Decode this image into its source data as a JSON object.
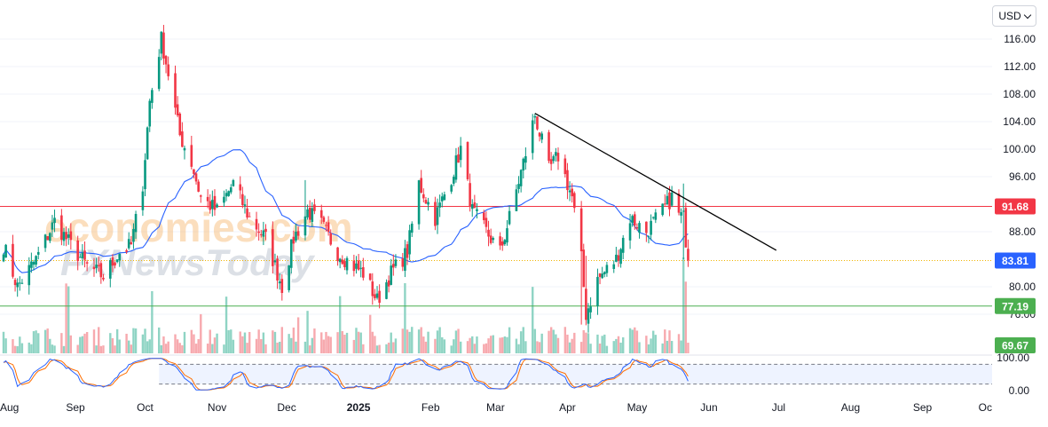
{
  "currency": "USD",
  "watermark": {
    "line1": "economies.com",
    "line2": "FXNewsToday"
  },
  "colors": {
    "up": "#089981",
    "down": "#f23645",
    "upVol": "#8fd4c4",
    "downVol": "#f7a9ae",
    "resistance": "#f23645",
    "support": "#4caf50",
    "ma": "#2962ff",
    "current": "#2962ff",
    "stochK": "#2962ff",
    "stochD": "#ff6d00",
    "trendline": "#000000"
  },
  "chart_data": {
    "type": "candlestick",
    "price_axis": {
      "ticks": [
        116,
        112,
        108,
        104,
        100,
        96,
        88,
        80,
        76
      ],
      "range": [
        68.5,
        118.5
      ]
    },
    "stochastic_axis": {
      "ticks": [
        "100.00",
        "0.00"
      ],
      "range": [
        0,
        100
      ]
    },
    "time_axis": {
      "labels": [
        "Aug",
        "Sep",
        "Oct",
        "Nov",
        "Dec",
        "2025",
        "Feb",
        "Mar",
        "Apr",
        "May",
        "Jun",
        "Jul",
        "Aug",
        "Sep",
        "Oc"
      ]
    },
    "price_labels": [
      {
        "id": "resistance",
        "text": "91.68",
        "value": 91.68
      },
      {
        "id": "current",
        "text": "83.81",
        "value": 83.81
      },
      {
        "id": "support",
        "text": "77.19",
        "value": 77.19
      },
      {
        "id": "volume",
        "text": "69.67",
        "value": 69.67
      }
    ],
    "levels": [
      {
        "name": "resistance",
        "value": 91.68
      },
      {
        "name": "support",
        "value": 77.19
      },
      {
        "name": "current",
        "value": 83.81
      }
    ],
    "trendline": [
      {
        "date": "2025-03-18",
        "value": 105.2
      },
      {
        "date": "2025-06-30",
        "value": 85.3
      }
    ],
    "price_anchors": [
      [
        "2024-08-01",
        86
      ],
      [
        "2024-08-07",
        80
      ],
      [
        "2024-08-15",
        84
      ],
      [
        "2024-08-23",
        89.5
      ],
      [
        "2024-08-30",
        86
      ],
      [
        "2024-09-06",
        83
      ],
      [
        "2024-09-13",
        81.5
      ],
      [
        "2024-09-20",
        85
      ],
      [
        "2024-09-25",
        86
      ],
      [
        "2024-09-30",
        95
      ],
      [
        "2024-10-03",
        107
      ],
      [
        "2024-10-08",
        116
      ],
      [
        "2024-10-11",
        111
      ],
      [
        "2024-10-16",
        102
      ],
      [
        "2024-10-21",
        98
      ],
      [
        "2024-10-25",
        93
      ],
      [
        "2024-11-01",
        91
      ],
      [
        "2024-11-08",
        95
      ],
      [
        "2024-11-15",
        90
      ],
      [
        "2024-11-22",
        87
      ],
      [
        "2024-11-29",
        80
      ],
      [
        "2024-12-04",
        87
      ],
      [
        "2024-12-10",
        91
      ],
      [
        "2024-12-16",
        89
      ],
      [
        "2024-12-23",
        85
      ],
      [
        "2024-12-30",
        83
      ],
      [
        "2025-01-03",
        82
      ],
      [
        "2025-01-09",
        78
      ],
      [
        "2025-01-15",
        82
      ],
      [
        "2025-01-22",
        85
      ],
      [
        "2025-01-27",
        95
      ],
      [
        "2025-02-03",
        90
      ],
      [
        "2025-02-10",
        96
      ],
      [
        "2025-02-14",
        100
      ],
      [
        "2025-02-19",
        91
      ],
      [
        "2025-02-25",
        88
      ],
      [
        "2025-03-03",
        85
      ],
      [
        "2025-03-07",
        90
      ],
      [
        "2025-03-13",
        98
      ],
      [
        "2025-03-18",
        105
      ],
      [
        "2025-03-24",
        97
      ],
      [
        "2025-03-28",
        99
      ],
      [
        "2025-04-03",
        93
      ],
      [
        "2025-04-07",
        84
      ],
      [
        "2025-04-09",
        76
      ],
      [
        "2025-04-14",
        81
      ],
      [
        "2025-04-22",
        84
      ],
      [
        "2025-04-28",
        90
      ],
      [
        "2025-05-05",
        88
      ],
      [
        "2025-05-12",
        91
      ],
      [
        "2025-05-16",
        93
      ],
      [
        "2025-05-19",
        90.5
      ],
      [
        "2025-05-21",
        90
      ],
      [
        "2025-05-23",
        83.81
      ]
    ],
    "volume_bars": "values 0–100 per trading day, scaled to volume pane",
    "stochastic": {
      "k": "oscillates 5–95",
      "d": "smoothed %K",
      "band": [
        20,
        80
      ]
    }
  }
}
